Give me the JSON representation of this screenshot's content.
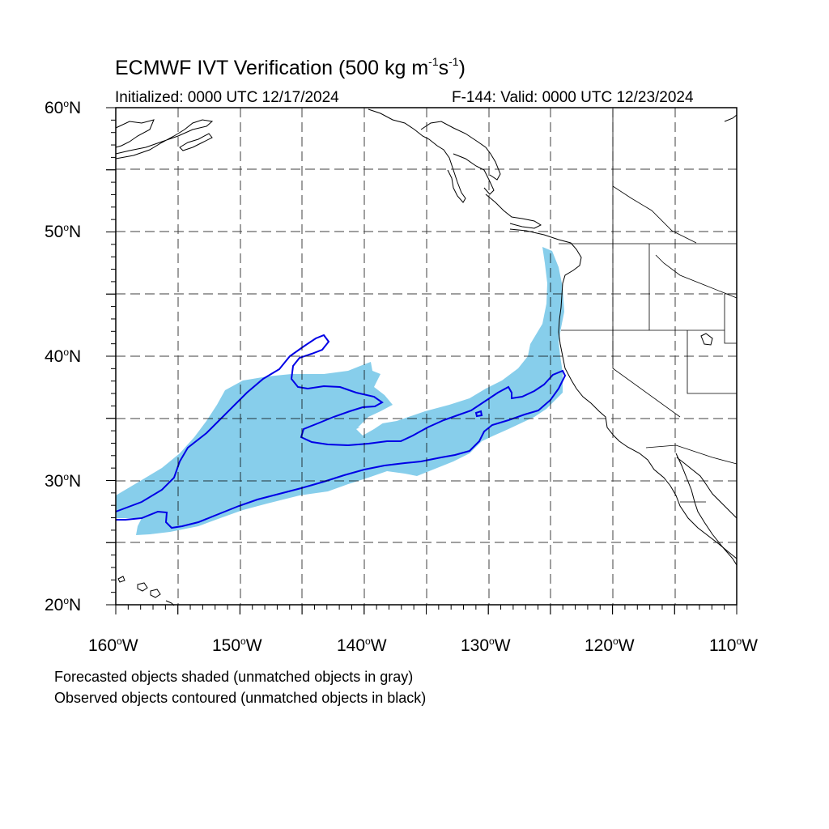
{
  "title_main": "ECMWF IVT Verification (500 kg m",
  "title_sup1": "-1",
  "title_mid": "s",
  "title_sup2": "-1",
  "title_end": ")",
  "initialized": "Initialized: 0000 UTC 12/17/2024",
  "valid": "F-144: Valid: 0000 UTC 12/23/2024",
  "lat_labels": [
    "60",
    "50",
    "40",
    "30",
    "20"
  ],
  "lat_suffix": "N",
  "lon_labels": [
    "160",
    "150",
    "140",
    "130",
    "120",
    "110"
  ],
  "lon_suffix": "W",
  "degree_symbol": "o",
  "note_forecast": "Forecasted objects shaded (unmatched objects in gray)",
  "note_observed": "Observed objects contoured (unmatched objects in black)",
  "colors": {
    "forecast_fill": "#87ceeb",
    "observed_contour": "#0000e6",
    "coast": "#000000",
    "grid": "#000000"
  }
}
